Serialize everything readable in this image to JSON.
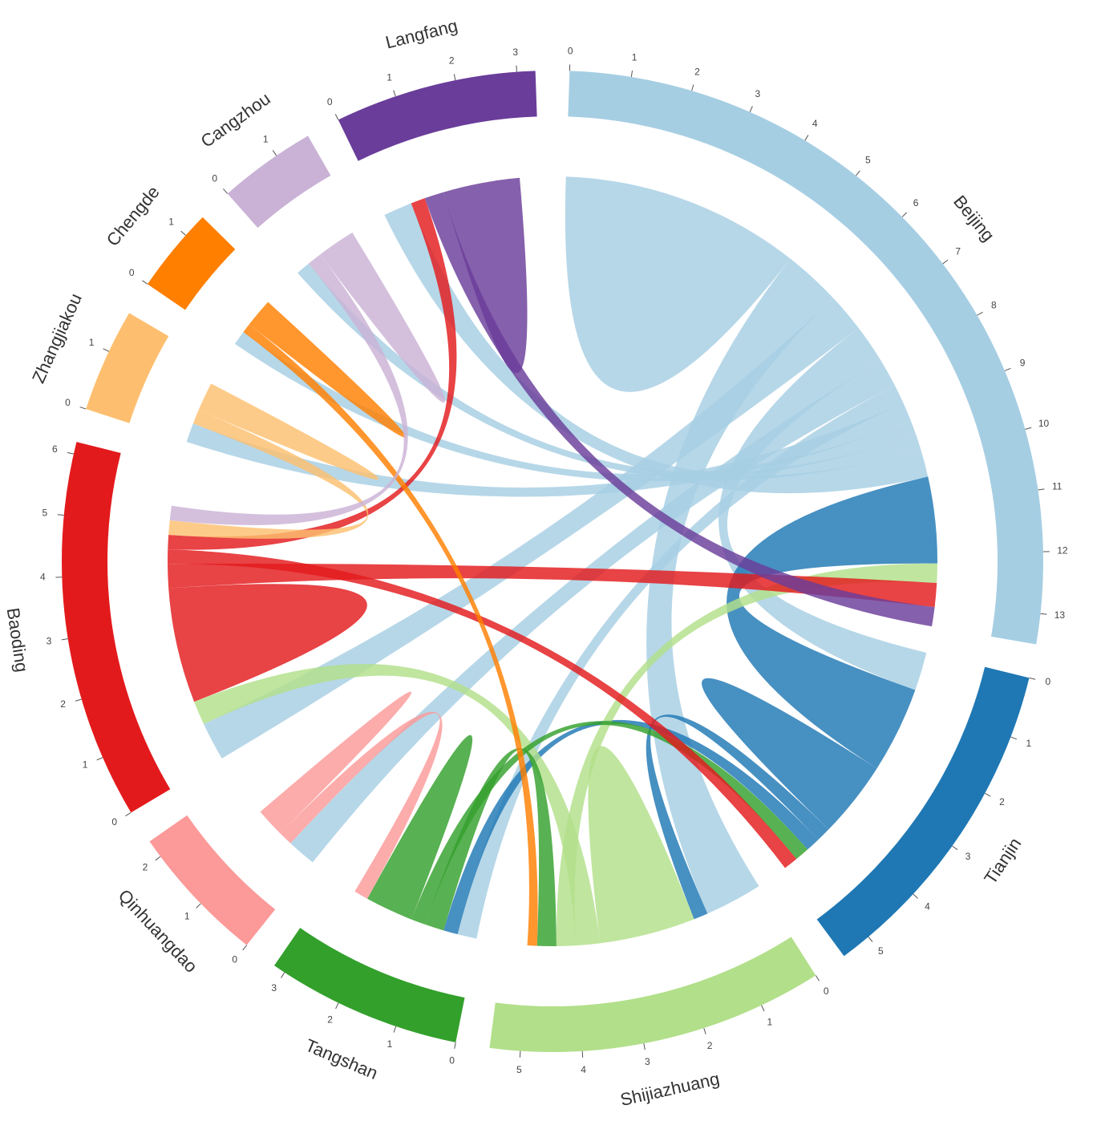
{
  "chart_data": {
    "type": "chord",
    "sectors": [
      {
        "name": "Beijing",
        "color": "#a6cee3",
        "value": 13.5,
        "ticks": [
          0,
          1,
          2,
          3,
          4,
          5,
          6,
          7,
          8,
          9,
          10,
          11,
          12,
          13
        ]
      },
      {
        "name": "Tianjin",
        "color": "#1f78b4",
        "value": 5.5,
        "ticks": [
          0,
          1,
          2,
          3,
          4,
          5
        ]
      },
      {
        "name": "Shijiazhuang",
        "color": "#b2df8a",
        "value": 5.5,
        "ticks": [
          0,
          1,
          2,
          3,
          4,
          5
        ]
      },
      {
        "name": "Tangshan",
        "color": "#33a02c",
        "value": 3.2,
        "ticks": [
          0,
          1,
          2,
          3
        ]
      },
      {
        "name": "Qinhuangdao",
        "color": "#fb9a99",
        "value": 2.3,
        "ticks": [
          0,
          1,
          2
        ]
      },
      {
        "name": "Baoding",
        "color": "#e31a1c",
        "value": 6.2,
        "ticks": [
          0,
          1,
          2,
          3,
          4,
          5,
          6
        ]
      },
      {
        "name": "Zhangjiakou",
        "color": "#fdbf6f",
        "value": 1.7,
        "ticks": [
          0,
          1
        ]
      },
      {
        "name": "Chengde",
        "color": "#ff7f00",
        "value": 1.4,
        "ticks": [
          0,
          1
        ]
      },
      {
        "name": "Cangzhou",
        "color": "#cab2d6",
        "value": 1.6,
        "ticks": [
          0,
          1
        ]
      },
      {
        "name": "Langfang",
        "color": "#6a3d9a",
        "value": 3.3,
        "ticks": [
          0,
          1,
          2,
          3
        ]
      }
    ],
    "flows": [
      {
        "source": "Beijing",
        "target": "Beijing",
        "value": 2.5
      },
      {
        "source": "Beijing",
        "target": "Shijiazhuang",
        "value": 1.2
      },
      {
        "source": "Beijing",
        "target": "Baoding",
        "value": 0.8
      },
      {
        "source": "Beijing",
        "target": "Tianjin",
        "value": 0.8
      },
      {
        "source": "Beijing",
        "target": "Qinhuangdao",
        "value": 0.6
      },
      {
        "source": "Beijing",
        "target": "Tangshan",
        "value": 0.4
      },
      {
        "source": "Beijing",
        "target": "Zhangjiakou",
        "value": 0.4
      },
      {
        "source": "Beijing",
        "target": "Chengde",
        "value": 0.3
      },
      {
        "source": "Beijing",
        "target": "Cangzhou",
        "value": 0.3
      },
      {
        "source": "Beijing",
        "target": "Langfang",
        "value": 0.6
      },
      {
        "source": "Tianjin",
        "target": "Beijing",
        "value": 1.8
      },
      {
        "source": "Tianjin",
        "target": "Tianjin",
        "value": 0.8
      },
      {
        "source": "Tianjin",
        "target": "Shijiazhuang",
        "value": 0.3
      },
      {
        "source": "Tianjin",
        "target": "Tangshan",
        "value": 0.3
      },
      {
        "source": "Shijiazhuang",
        "target": "Shijiazhuang",
        "value": 1.0
      },
      {
        "source": "Shijiazhuang",
        "target": "Baoding",
        "value": 0.5
      },
      {
        "source": "Shijiazhuang",
        "target": "Beijing",
        "value": 0.4
      },
      {
        "source": "Tangshan",
        "target": "Shijiazhuang",
        "value": 0.4
      },
      {
        "source": "Tangshan",
        "target": "Tianjin",
        "value": 0.3
      },
      {
        "source": "Tangshan",
        "target": "Tangshan",
        "value": 0.5
      },
      {
        "source": "Qinhuangdao",
        "target": "Tangshan",
        "value": 0.3
      },
      {
        "source": "Qinhuangdao",
        "target": "Qinhuangdao",
        "value": 0.3
      },
      {
        "source": "Baoding",
        "target": "Baoding",
        "value": 1.2
      },
      {
        "source": "Baoding",
        "target": "Beijing",
        "value": 0.5
      },
      {
        "source": "Baoding",
        "target": "Tianjin",
        "value": 0.3
      },
      {
        "source": "Baoding",
        "target": "Langfang",
        "value": 0.3
      },
      {
        "source": "Zhangjiakou",
        "target": "Baoding",
        "value": 0.3
      },
      {
        "source": "Zhangjiakou",
        "target": "Zhangjiakou",
        "value": 0.3
      },
      {
        "source": "Chengde",
        "target": "Shijiazhuang",
        "value": 0.2
      },
      {
        "source": "Chengde",
        "target": "Chengde",
        "value": 0.3
      },
      {
        "source": "Cangzhou",
        "target": "Baoding",
        "value": 0.3
      },
      {
        "source": "Cangzhou",
        "target": "Cangzhou",
        "value": 0.4
      },
      {
        "source": "Langfang",
        "target": "Beijing",
        "value": 0.4
      },
      {
        "source": "Langfang",
        "target": "Langfang",
        "value": 0.8
      }
    ]
  }
}
